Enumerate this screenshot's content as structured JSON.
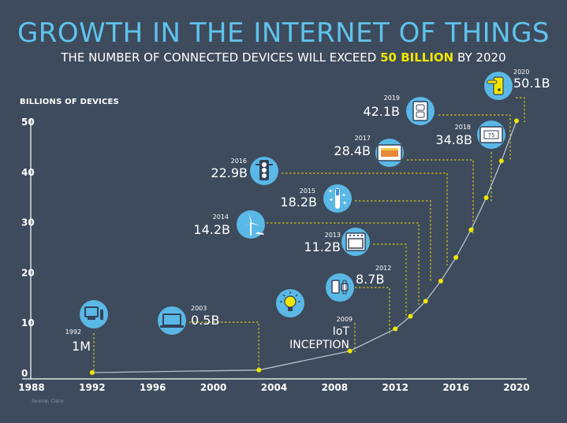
{
  "header": {
    "title": "GROWTH IN THE INTERNET OF THINGS",
    "subtitle_prefix": "THE NUMBER OF CONNECTED DEVICES WILL EXCEED",
    "subtitle_highlight": "50 BILLION",
    "subtitle_suffix": "BY 2020"
  },
  "source": "Source: Cisco",
  "colors": {
    "background": "#3d4b5d",
    "accent": "#f2e600",
    "title": "#5fc3ec",
    "bubble": "#5ab8e6"
  },
  "chart_data": {
    "type": "line",
    "ylabel": "BILLIONS OF DEVICES",
    "xlim": [
      1988,
      2020
    ],
    "ylim": [
      0,
      50
    ],
    "x_ticks": [
      1988,
      1992,
      1996,
      2000,
      2004,
      2008,
      2012,
      2016,
      2020
    ],
    "y_ticks": [
      0,
      10,
      20,
      30,
      40,
      50
    ],
    "series": [
      {
        "points": [
          {
            "x": 1992,
            "y": 0.001,
            "label": "1M",
            "year_label": "1992",
            "icon": "desktop-computer-icon"
          },
          {
            "x": 2003,
            "y": 0.5,
            "label": "0.5B",
            "year_label": "2003",
            "icon": "laptop-icon"
          },
          {
            "x": 2009,
            "y": 4.3,
            "label": "IoT INCEPTION",
            "year_label": "2009",
            "icon": "lightbulb-icon"
          },
          {
            "x": 2012,
            "y": 8.7,
            "label": "8.7B",
            "year_label": "2012",
            "icon": "smartwatch-phone-icon"
          },
          {
            "x": 2013,
            "y": 11.2,
            "label": "11.2B",
            "year_label": "2013",
            "icon": "oven-icon"
          },
          {
            "x": 2014,
            "y": 14.2,
            "label": "14.2B",
            "year_label": "2014",
            "icon": "wind-turbine-icon"
          },
          {
            "x": 2015,
            "y": 18.2,
            "label": "18.2B",
            "year_label": "2015",
            "icon": "toothbrush-icon"
          },
          {
            "x": 2016,
            "y": 22.9,
            "label": "22.9B",
            "year_label": "2016",
            "icon": "traffic-light-icon"
          },
          {
            "x": 2017,
            "y": 28.4,
            "label": "28.4B",
            "year_label": "2017",
            "icon": "tablet-icon"
          },
          {
            "x": 2018,
            "y": 34.8,
            "label": "34.8B",
            "year_label": "2018",
            "icon": "thermostat-icon"
          },
          {
            "x": 2019,
            "y": 42.1,
            "label": "42.1B",
            "year_label": "2019",
            "icon": "power-outlet-icon"
          },
          {
            "x": 2020,
            "y": 50.1,
            "label": "50.1B",
            "year_label": "2020",
            "icon": "door-lock-icon"
          }
        ]
      }
    ],
    "grid": false,
    "legend": "none"
  }
}
